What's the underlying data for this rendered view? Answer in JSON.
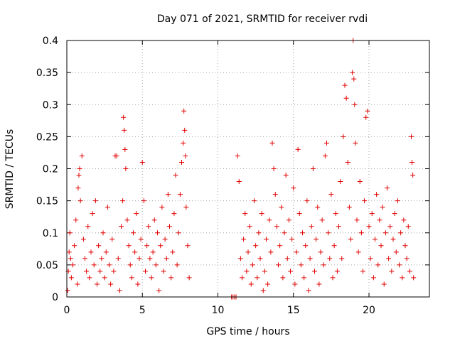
{
  "chart_data": {
    "type": "scatter",
    "title": "Day 071 of 2021, SRMTID for receiver rvdi",
    "xlabel": "GPS time / hours",
    "ylabel": "SRMTID / TECUs",
    "xlim": [
      0,
      24
    ],
    "ylim": [
      0,
      0.4
    ],
    "xticks": [
      0,
      5,
      10,
      15,
      20
    ],
    "xtick_labels": [
      "0",
      "5",
      "10",
      "15",
      "20"
    ],
    "yticks": [
      0,
      0.05,
      0.1,
      0.15,
      0.2,
      0.25,
      0.3,
      0.35,
      0.4
    ],
    "ytick_labels": [
      "0",
      "0.05",
      "0.1",
      "0.15",
      "0.2",
      "0.25",
      "0.3",
      "0.35",
      "0.4"
    ],
    "grid": true,
    "marker": "+",
    "color": "#e00000",
    "series": [
      {
        "name": "SRMTID",
        "points": [
          [
            0.05,
            0.01
          ],
          [
            0.1,
            0.04
          ],
          [
            0.15,
            0.07
          ],
          [
            0.2,
            0.1
          ],
          [
            0.25,
            0.06
          ],
          [
            0.3,
            0.03
          ],
          [
            0.4,
            0.05
          ],
          [
            0.5,
            0.08
          ],
          [
            0.6,
            0.12
          ],
          [
            0.7,
            0.02
          ],
          [
            0.75,
            0.17
          ],
          [
            0.8,
            0.19
          ],
          [
            0.85,
            0.2
          ],
          [
            0.9,
            0.15
          ],
          [
            1.0,
            0.22
          ],
          [
            1.1,
            0.09
          ],
          [
            1.2,
            0.06
          ],
          [
            1.3,
            0.04
          ],
          [
            1.4,
            0.11
          ],
          [
            1.5,
            0.03
          ],
          [
            1.6,
            0.07
          ],
          [
            1.7,
            0.13
          ],
          [
            1.8,
            0.05
          ],
          [
            1.9,
            0.15
          ],
          [
            2.0,
            0.02
          ],
          [
            2.1,
            0.08
          ],
          [
            2.2,
            0.04
          ],
          [
            2.3,
            0.06
          ],
          [
            2.4,
            0.1
          ],
          [
            2.5,
            0.03
          ],
          [
            2.6,
            0.07
          ],
          [
            2.7,
            0.14
          ],
          [
            2.8,
            0.05
          ],
          [
            2.9,
            0.02
          ],
          [
            3.0,
            0.09
          ],
          [
            3.1,
            0.04
          ],
          [
            3.2,
            0.22
          ],
          [
            3.3,
            0.22
          ],
          [
            3.4,
            0.06
          ],
          [
            3.5,
            0.01
          ],
          [
            3.6,
            0.11
          ],
          [
            3.7,
            0.15
          ],
          [
            3.75,
            0.28
          ],
          [
            3.8,
            0.26
          ],
          [
            3.85,
            0.23
          ],
          [
            3.9,
            0.2
          ],
          [
            4.0,
            0.12
          ],
          [
            4.1,
            0.08
          ],
          [
            4.2,
            0.05
          ],
          [
            4.3,
            0.03
          ],
          [
            4.4,
            0.1
          ],
          [
            4.5,
            0.07
          ],
          [
            4.6,
            0.13
          ],
          [
            4.7,
            0.02
          ],
          [
            4.8,
            0.06
          ],
          [
            4.9,
            0.09
          ],
          [
            5.0,
            0.21
          ],
          [
            5.1,
            0.15
          ],
          [
            5.2,
            0.04
          ],
          [
            5.3,
            0.08
          ],
          [
            5.4,
            0.11
          ],
          [
            5.5,
            0.06
          ],
          [
            5.6,
            0.03
          ],
          [
            5.7,
            0.07
          ],
          [
            5.8,
            0.12
          ],
          [
            5.9,
            0.05
          ],
          [
            6.0,
            0.1
          ],
          [
            6.1,
            0.01
          ],
          [
            6.2,
            0.08
          ],
          [
            6.3,
            0.14
          ],
          [
            6.4,
            0.04
          ],
          [
            6.5,
            0.09
          ],
          [
            6.6,
            0.06
          ],
          [
            6.7,
            0.16
          ],
          [
            6.8,
            0.11
          ],
          [
            6.9,
            0.03
          ],
          [
            7.0,
            0.07
          ],
          [
            7.1,
            0.13
          ],
          [
            7.2,
            0.19
          ],
          [
            7.3,
            0.05
          ],
          [
            7.4,
            0.1
          ],
          [
            7.5,
            0.16
          ],
          [
            7.6,
            0.21
          ],
          [
            7.7,
            0.24
          ],
          [
            7.75,
            0.29
          ],
          [
            7.8,
            0.26
          ],
          [
            7.85,
            0.22
          ],
          [
            7.9,
            0.14
          ],
          [
            8.0,
            0.08
          ],
          [
            8.1,
            0.03
          ],
          [
            10.9,
            0.0
          ],
          [
            11.0,
            0.0
          ],
          [
            11.1,
            0.0
          ],
          [
            11.2,
            0.0
          ],
          [
            11.3,
            0.22
          ],
          [
            11.4,
            0.18
          ],
          [
            11.5,
            0.06
          ],
          [
            11.6,
            0.03
          ],
          [
            11.7,
            0.09
          ],
          [
            11.8,
            0.13
          ],
          [
            11.9,
            0.04
          ],
          [
            12.0,
            0.07
          ],
          [
            12.1,
            0.11
          ],
          [
            12.2,
            0.02
          ],
          [
            12.3,
            0.05
          ],
          [
            12.4,
            0.15
          ],
          [
            12.5,
            0.08
          ],
          [
            12.6,
            0.03
          ],
          [
            12.7,
            0.1
          ],
          [
            12.8,
            0.06
          ],
          [
            12.9,
            0.13
          ],
          [
            13.0,
            0.01
          ],
          [
            13.1,
            0.04
          ],
          [
            13.2,
            0.09
          ],
          [
            13.3,
            0.02
          ],
          [
            13.4,
            0.12
          ],
          [
            13.5,
            0.07
          ],
          [
            13.6,
            0.24
          ],
          [
            13.7,
            0.2
          ],
          [
            13.8,
            0.16
          ],
          [
            13.9,
            0.11
          ],
          [
            14.0,
            0.05
          ],
          [
            14.1,
            0.08
          ],
          [
            14.2,
            0.14
          ],
          [
            14.3,
            0.03
          ],
          [
            14.4,
            0.1
          ],
          [
            14.5,
            0.19
          ],
          [
            14.6,
            0.06
          ],
          [
            14.7,
            0.12
          ],
          [
            14.8,
            0.04
          ],
          [
            14.9,
            0.09
          ],
          [
            15.0,
            0.17
          ],
          [
            15.1,
            0.02
          ],
          [
            15.2,
            0.07
          ],
          [
            15.3,
            0.23
          ],
          [
            15.4,
            0.13
          ],
          [
            15.5,
            0.05
          ],
          [
            15.6,
            0.1
          ],
          [
            15.7,
            0.03
          ],
          [
            15.8,
            0.08
          ],
          [
            15.9,
            0.15
          ],
          [
            16.0,
            0.01
          ],
          [
            16.1,
            0.06
          ],
          [
            16.2,
            0.11
          ],
          [
            16.3,
            0.2
          ],
          [
            16.4,
            0.04
          ],
          [
            16.5,
            0.09
          ],
          [
            16.6,
            0.14
          ],
          [
            16.7,
            0.02
          ],
          [
            16.8,
            0.07
          ],
          [
            16.9,
            0.12
          ],
          [
            17.0,
            0.05
          ],
          [
            17.1,
            0.22
          ],
          [
            17.2,
            0.24
          ],
          [
            17.3,
            0.1
          ],
          [
            17.4,
            0.06
          ],
          [
            17.5,
            0.16
          ],
          [
            17.6,
            0.03
          ],
          [
            17.7,
            0.08
          ],
          [
            17.8,
            0.13
          ],
          [
            17.9,
            0.04
          ],
          [
            18.0,
            0.11
          ],
          [
            18.1,
            0.18
          ],
          [
            18.2,
            0.06
          ],
          [
            18.3,
            0.25
          ],
          [
            18.4,
            0.33
          ],
          [
            18.5,
            0.31
          ],
          [
            18.6,
            0.21
          ],
          [
            18.7,
            0.14
          ],
          [
            18.8,
            0.09
          ],
          [
            18.9,
            0.35
          ],
          [
            18.95,
            0.4
          ],
          [
            19.0,
            0.34
          ],
          [
            19.05,
            0.3
          ],
          [
            19.1,
            0.24
          ],
          [
            19.2,
            0.12
          ],
          [
            19.3,
            0.07
          ],
          [
            19.4,
            0.18
          ],
          [
            19.5,
            0.1
          ],
          [
            19.6,
            0.04
          ],
          [
            19.7,
            0.15
          ],
          [
            19.8,
            0.28
          ],
          [
            19.9,
            0.29
          ],
          [
            20.0,
            0.11
          ],
          [
            20.1,
            0.06
          ],
          [
            20.2,
            0.13
          ],
          [
            20.3,
            0.03
          ],
          [
            20.4,
            0.09
          ],
          [
            20.5,
            0.16
          ],
          [
            20.6,
            0.05
          ],
          [
            20.7,
            0.12
          ],
          [
            20.8,
            0.08
          ],
          [
            20.9,
            0.14
          ],
          [
            21.0,
            0.02
          ],
          [
            21.1,
            0.1
          ],
          [
            21.2,
            0.17
          ],
          [
            21.3,
            0.06
          ],
          [
            21.4,
            0.11
          ],
          [
            21.5,
            0.04
          ],
          [
            21.6,
            0.09
          ],
          [
            21.7,
            0.13
          ],
          [
            21.8,
            0.07
          ],
          [
            21.9,
            0.15
          ],
          [
            22.0,
            0.05
          ],
          [
            22.1,
            0.1
          ],
          [
            22.2,
            0.03
          ],
          [
            22.3,
            0.12
          ],
          [
            22.4,
            0.08
          ],
          [
            22.5,
            0.06
          ],
          [
            22.6,
            0.11
          ],
          [
            22.7,
            0.04
          ],
          [
            22.8,
            0.25
          ],
          [
            22.85,
            0.21
          ],
          [
            22.9,
            0.19
          ],
          [
            22.95,
            0.03
          ]
        ]
      }
    ]
  }
}
